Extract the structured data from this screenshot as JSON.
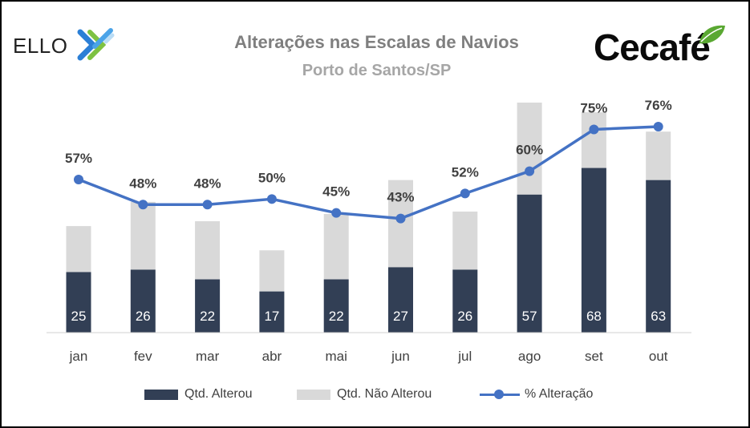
{
  "header": {
    "title": "Alterações nas Escalas de Navios",
    "subtitle": "Porto de Santos/SP",
    "logo_left_text": "ELLO",
    "logo_right_text": "Cecafé"
  },
  "colors": {
    "altered": "#323f55",
    "not_altered": "#d9d9d9",
    "line": "#4472c4",
    "axis_text": "#404040",
    "pct_label": "#404040",
    "bar_label": "#ffffff"
  },
  "chart_data": {
    "type": "bar",
    "stacked": true,
    "categories": [
      "jan",
      "fev",
      "mar",
      "abr",
      "mai",
      "jun",
      "jul",
      "ago",
      "set",
      "out"
    ],
    "series": [
      {
        "name": "Qtd. Alterou",
        "values": [
          25,
          26,
          22,
          17,
          22,
          27,
          26,
          57,
          68,
          63
        ]
      },
      {
        "name": "Qtd. Não Alterou",
        "values": [
          19,
          28,
          24,
          17,
          27,
          36,
          24,
          38,
          23,
          20
        ]
      }
    ],
    "line_series": {
      "name": "% Alteração",
      "values": [
        57,
        48,
        48,
        50,
        45,
        43,
        52,
        60,
        75,
        76
      ],
      "labels": [
        "57%",
        "48%",
        "48%",
        "50%",
        "45%",
        "43%",
        "52%",
        "60%",
        "75%",
        "76%"
      ]
    },
    "bar_labels": [
      "25",
      "26",
      "22",
      "17",
      "22",
      "27",
      "26",
      "57",
      "68",
      "63"
    ],
    "ylim": [
      0,
      95
    ],
    "grid": false,
    "legend_position": "bottom"
  },
  "legend": {
    "items": [
      {
        "label": "Qtd. Alterou"
      },
      {
        "label": "Qtd. Não Alterou"
      },
      {
        "label": "% Alteração"
      }
    ]
  }
}
